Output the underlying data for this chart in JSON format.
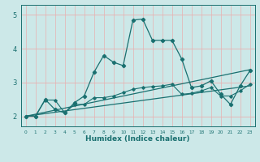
{
  "xlabel": "Humidex (Indice chaleur)",
  "xlim": [
    -0.5,
    23.5
  ],
  "ylim": [
    1.7,
    5.3
  ],
  "yticks": [
    2,
    3,
    4,
    5
  ],
  "xticks": [
    0,
    1,
    2,
    3,
    4,
    5,
    6,
    7,
    8,
    9,
    10,
    11,
    12,
    13,
    14,
    15,
    16,
    17,
    18,
    19,
    20,
    21,
    22,
    23
  ],
  "bg_color": "#cce8e8",
  "grid_h_color": "#e8b0b0",
  "grid_v_color": "#d8c8c8",
  "line_color": "#1a7070",
  "series1_x": [
    0,
    1,
    2,
    3,
    4,
    5,
    6,
    7,
    8,
    9,
    10,
    11,
    12,
    13,
    14,
    15,
    16,
    17,
    18,
    19,
    20,
    21,
    22,
    23
  ],
  "series1_y": [
    2.0,
    2.0,
    2.5,
    2.2,
    2.1,
    2.4,
    2.6,
    3.3,
    3.8,
    3.6,
    3.5,
    4.85,
    4.88,
    4.25,
    4.25,
    4.25,
    3.7,
    2.85,
    2.9,
    3.05,
    2.65,
    2.35,
    2.9,
    3.35
  ],
  "series2_x": [
    0,
    1,
    2,
    3,
    4,
    5,
    6,
    7,
    8,
    9,
    10,
    11,
    12,
    13,
    14,
    15,
    16,
    17,
    18,
    19,
    20,
    21,
    22,
    23
  ],
  "series2_y": [
    2.0,
    2.0,
    2.48,
    2.48,
    2.1,
    2.35,
    2.35,
    2.55,
    2.55,
    2.6,
    2.7,
    2.8,
    2.85,
    2.88,
    2.9,
    2.95,
    2.65,
    2.68,
    2.75,
    2.85,
    2.6,
    2.6,
    2.75,
    2.95
  ],
  "series3_x": [
    0,
    23
  ],
  "series3_y": [
    2.0,
    2.9
  ],
  "series4_x": [
    0,
    23
  ],
  "series4_y": [
    2.0,
    3.38
  ],
  "figsize": [
    3.2,
    2.0
  ],
  "dpi": 100
}
